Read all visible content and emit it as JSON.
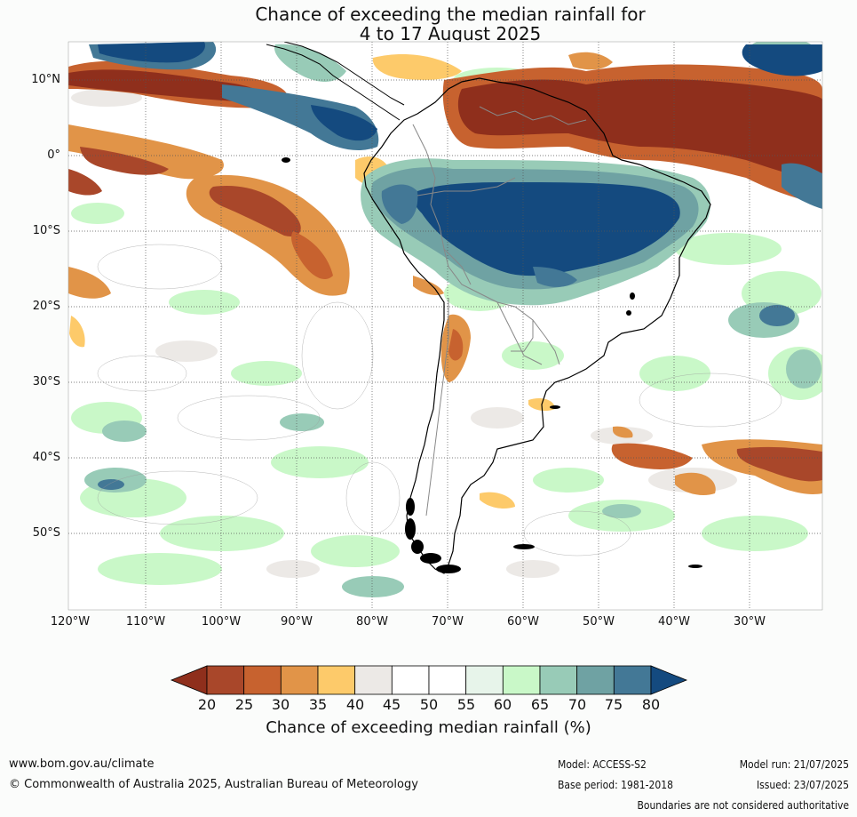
{
  "title_line1": "Chance of exceeding the median rainfall for",
  "title_line2": "4 to 17 August 2025",
  "lat_labels": [
    "10°N",
    "0°",
    "10°S",
    "20°S",
    "30°S",
    "40°S",
    "50°S"
  ],
  "lon_labels": [
    "120°W",
    "110°W",
    "100°W",
    "90°W",
    "80°W",
    "70°W",
    "60°W",
    "50°W",
    "40°W",
    "30°W"
  ],
  "colorbar": {
    "label": "Chance of exceeding median rainfall (%)",
    "ticks": [
      "20",
      "25",
      "30",
      "35",
      "40",
      "45",
      "50",
      "55",
      "60",
      "65",
      "70",
      "75",
      "80"
    ],
    "colors": {
      "below20": "#8f2f1c",
      "20-25": "#a9472a",
      "25-30": "#c7622f",
      "30-35": "#e19448",
      "35-40": "#fdca6a",
      "40-45": "#ece9e6",
      "45-50": "#ffffff",
      "50-55": "#ffffff",
      "55-60": "#e7f4ea",
      "60-65": "#c9f8c8",
      "65-70": "#98cbb7",
      "70-75": "#6fa2a3",
      "75-80": "#437896",
      "above80": "#144a7f"
    }
  },
  "footer": {
    "url": "www.bom.gov.au/climate",
    "copyright": "© Commonwealth of Australia 2025, Australian Bureau of Meteorology",
    "model": "Model: ACCESS-S2",
    "base_period": "Base period: 1981-2018",
    "model_run": "Model run: 21/07/2025",
    "issued": "Issued: 23/07/2025",
    "disclaimer": "Boundaries are not considered authoritative"
  }
}
